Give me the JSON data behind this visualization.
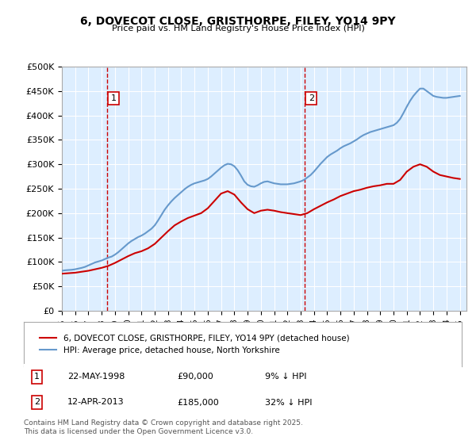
{
  "title": "6, DOVECOT CLOSE, GRISTHORPE, FILEY, YO14 9PY",
  "subtitle": "Price paid vs. HM Land Registry's House Price Index (HPI)",
  "ylabel": "",
  "xlabel": "",
  "bg_color": "#ddeeff",
  "fig_bg": "#ffffff",
  "plot_bg": "#ddeeff",
  "ylim": [
    0,
    500000
  ],
  "yticks": [
    0,
    50000,
    100000,
    150000,
    200000,
    250000,
    300000,
    350000,
    400000,
    450000,
    500000
  ],
  "ytick_labels": [
    "£0",
    "£50K",
    "£100K",
    "£150K",
    "£200K",
    "£250K",
    "£300K",
    "£350K",
    "£400K",
    "£450K",
    "£500K"
  ],
  "xlim_start": 1995.0,
  "xlim_end": 2025.5,
  "sale1_date": 1998.39,
  "sale1_price": 90000,
  "sale1_label": "22-MAY-1998",
  "sale2_date": 2013.28,
  "sale2_price": 185000,
  "sale2_label": "12-APR-2013",
  "red_line_color": "#cc0000",
  "blue_line_color": "#6699cc",
  "annotation_box_color": "#cc0000",
  "legend_label1": "6, DOVECOT CLOSE, GRISTHORPE, FILEY, YO14 9PY (detached house)",
  "legend_label2": "HPI: Average price, detached house, North Yorkshire",
  "footer": "Contains HM Land Registry data © Crown copyright and database right 2025.\nThis data is licensed under the Open Government Licence v3.0.",
  "annot1_text": "22-MAY-1998        £90,000        9% ↓ HPI",
  "annot2_text": "12-APR-2013        £185,000        32% ↓ HPI",
  "hpi_years": [
    1995.0,
    1995.25,
    1995.5,
    1995.75,
    1996.0,
    1996.25,
    1996.5,
    1996.75,
    1997.0,
    1997.25,
    1997.5,
    1997.75,
    1998.0,
    1998.25,
    1998.5,
    1998.75,
    1999.0,
    1999.25,
    1999.5,
    1999.75,
    2000.0,
    2000.25,
    2000.5,
    2000.75,
    2001.0,
    2001.25,
    2001.5,
    2001.75,
    2002.0,
    2002.25,
    2002.5,
    2002.75,
    2003.0,
    2003.25,
    2003.5,
    2003.75,
    2004.0,
    2004.25,
    2004.5,
    2004.75,
    2005.0,
    2005.25,
    2005.5,
    2005.75,
    2006.0,
    2006.25,
    2006.5,
    2006.75,
    2007.0,
    2007.25,
    2007.5,
    2007.75,
    2008.0,
    2008.25,
    2008.5,
    2008.75,
    2009.0,
    2009.25,
    2009.5,
    2009.75,
    2010.0,
    2010.25,
    2010.5,
    2010.75,
    2011.0,
    2011.25,
    2011.5,
    2011.75,
    2012.0,
    2012.25,
    2012.5,
    2012.75,
    2013.0,
    2013.25,
    2013.5,
    2013.75,
    2014.0,
    2014.25,
    2014.5,
    2014.75,
    2015.0,
    2015.25,
    2015.5,
    2015.75,
    2016.0,
    2016.25,
    2016.5,
    2016.75,
    2017.0,
    2017.25,
    2017.5,
    2017.75,
    2018.0,
    2018.25,
    2018.5,
    2018.75,
    2019.0,
    2019.25,
    2019.5,
    2019.75,
    2020.0,
    2020.25,
    2020.5,
    2020.75,
    2021.0,
    2021.25,
    2021.5,
    2021.75,
    2022.0,
    2022.25,
    2022.5,
    2022.75,
    2023.0,
    2023.25,
    2023.5,
    2023.75,
    2024.0,
    2024.25,
    2024.5,
    2024.75,
    2025.0
  ],
  "hpi_values": [
    82000,
    83000,
    83500,
    84000,
    85000,
    86500,
    88000,
    90000,
    93000,
    96000,
    99000,
    101000,
    103000,
    106000,
    109000,
    111000,
    115000,
    120000,
    126000,
    132000,
    138000,
    143000,
    147000,
    151000,
    154000,
    158000,
    163000,
    168000,
    175000,
    185000,
    196000,
    207000,
    216000,
    224000,
    231000,
    237000,
    243000,
    249000,
    254000,
    258000,
    261000,
    263000,
    265000,
    267000,
    270000,
    275000,
    281000,
    287000,
    293000,
    298000,
    301000,
    300000,
    296000,
    288000,
    277000,
    265000,
    258000,
    255000,
    254000,
    257000,
    261000,
    264000,
    265000,
    263000,
    261000,
    260000,
    259000,
    259000,
    259000,
    260000,
    261000,
    263000,
    265000,
    268000,
    273000,
    278000,
    285000,
    293000,
    301000,
    308000,
    315000,
    320000,
    324000,
    328000,
    333000,
    337000,
    340000,
    343000,
    347000,
    351000,
    356000,
    360000,
    363000,
    366000,
    368000,
    370000,
    372000,
    374000,
    376000,
    378000,
    380000,
    385000,
    393000,
    405000,
    418000,
    430000,
    440000,
    448000,
    455000,
    455000,
    450000,
    445000,
    440000,
    438000,
    437000,
    436000,
    436000,
    437000,
    438000,
    439000,
    440000
  ],
  "red_years": [
    1995.0,
    1995.5,
    1996.0,
    1996.5,
    1997.0,
    1997.5,
    1998.0,
    1998.5,
    1999.0,
    1999.5,
    2000.0,
    2000.5,
    2001.0,
    2001.5,
    2002.0,
    2002.5,
    2003.0,
    2003.5,
    2004.0,
    2004.5,
    2005.0,
    2005.5,
    2006.0,
    2006.5,
    2007.0,
    2007.5,
    2008.0,
    2008.5,
    2009.0,
    2009.5,
    2010.0,
    2010.5,
    2011.0,
    2011.5,
    2012.0,
    2012.5,
    2013.0,
    2013.5,
    2014.0,
    2014.5,
    2015.0,
    2015.5,
    2016.0,
    2016.5,
    2017.0,
    2017.5,
    2018.0,
    2018.5,
    2019.0,
    2019.5,
    2020.0,
    2020.5,
    2021.0,
    2021.5,
    2022.0,
    2022.5,
    2023.0,
    2023.5,
    2024.0,
    2024.5,
    2025.0
  ],
  "red_values": [
    76000,
    77000,
    78000,
    80000,
    82000,
    85000,
    88000,
    92000,
    98000,
    105000,
    112000,
    118000,
    122000,
    128000,
    137000,
    150000,
    163000,
    175000,
    183000,
    190000,
    195000,
    200000,
    210000,
    225000,
    240000,
    245000,
    238000,
    222000,
    208000,
    200000,
    205000,
    207000,
    205000,
    202000,
    200000,
    198000,
    196000,
    200000,
    208000,
    215000,
    222000,
    228000,
    235000,
    240000,
    245000,
    248000,
    252000,
    255000,
    257000,
    260000,
    260000,
    268000,
    285000,
    295000,
    300000,
    295000,
    285000,
    278000,
    275000,
    272000,
    270000
  ]
}
